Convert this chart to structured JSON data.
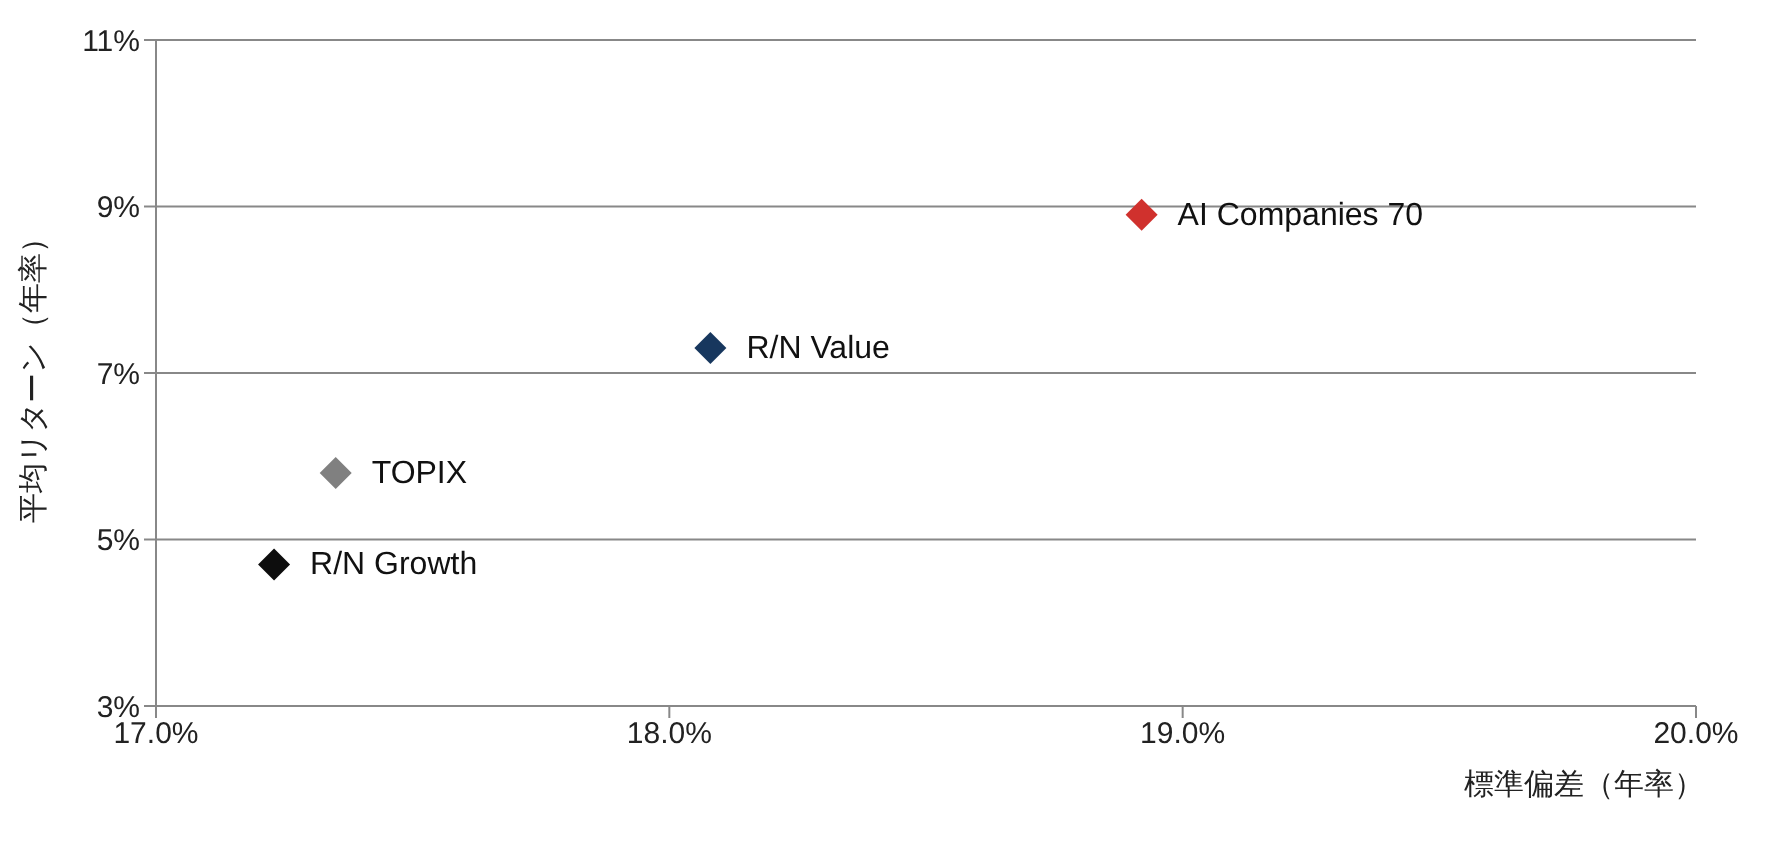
{
  "chart_data": {
    "type": "scatter",
    "xlabel": "標準偏差（年率）",
    "ylabel": "平均リターン（年率）",
    "xlim": [
      17,
      20
    ],
    "xticks": [
      {
        "value": 17,
        "label": "17.0%"
      },
      {
        "value": 18,
        "label": "18.0%"
      },
      {
        "value": 19,
        "label": "19.0%"
      },
      {
        "value": 20,
        "label": "20.0%"
      }
    ],
    "ylim": [
      3,
      11
    ],
    "yticks": [
      {
        "value": 3,
        "label": "3%"
      },
      {
        "value": 5,
        "label": "5%"
      },
      {
        "value": 7,
        "label": "7%"
      },
      {
        "value": 9,
        "label": "9%"
      },
      {
        "value": 11,
        "label": "11%"
      }
    ],
    "grid": "y",
    "marker": "diamond",
    "series": [
      {
        "name": "AI Companies 70",
        "color": "#d0312d",
        "x": [
          18.92
        ],
        "values": [
          8.9
        ]
      },
      {
        "name": "R/N Value",
        "color": "#17375e",
        "x": [
          18.08
        ],
        "values": [
          7.3
        ]
      },
      {
        "name": "TOPIX",
        "color": "#808080",
        "x": [
          17.35
        ],
        "values": [
          5.8
        ]
      },
      {
        "name": "R/N Growth",
        "color": "#0d0d0d",
        "x": [
          17.23
        ],
        "values": [
          4.7
        ]
      }
    ]
  }
}
